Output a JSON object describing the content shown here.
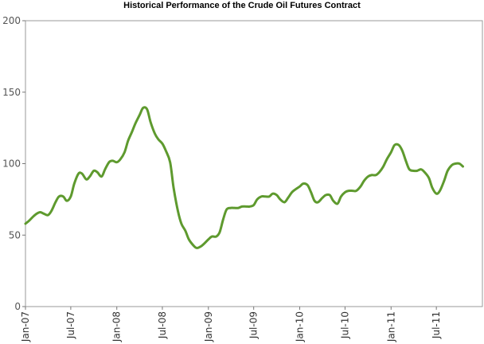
{
  "chart_data": {
    "type": "line",
    "title": "Historical Performance of the Crude Oil Futures Contract",
    "xlabel": "",
    "ylabel": "",
    "ylim": [
      0,
      200
    ],
    "yticks": [
      0,
      50,
      100,
      150,
      200
    ],
    "xlim": [
      "2007-01",
      "2011-12"
    ],
    "xticks": [
      {
        "x": "2007-01",
        "label": "Jan-07"
      },
      {
        "x": "2007-07",
        "label": "Jul-07"
      },
      {
        "x": "2008-01",
        "label": "Jan-08"
      },
      {
        "x": "2008-07",
        "label": "Jul-08"
      },
      {
        "x": "2009-01",
        "label": "Jan-09"
      },
      {
        "x": "2009-07",
        "label": "Jul-09"
      },
      {
        "x": "2010-01",
        "label": "Jan-10"
      },
      {
        "x": "2010-07",
        "label": "Jul-10"
      },
      {
        "x": "2011-01",
        "label": "Jan-11"
      },
      {
        "x": "2011-07",
        "label": "Jul-11"
      }
    ],
    "grid": false,
    "legend": "none",
    "line_color": "#5e9a2e",
    "series": [
      {
        "name": "",
        "points": [
          [
            "2007-01-01",
            58
          ],
          [
            "2007-01-15",
            60
          ],
          [
            "2007-02-01",
            63
          ],
          [
            "2007-02-15",
            65
          ],
          [
            "2007-03-01",
            66
          ],
          [
            "2007-03-15",
            65
          ],
          [
            "2007-04-01",
            64
          ],
          [
            "2007-04-15",
            67
          ],
          [
            "2007-05-01",
            73
          ],
          [
            "2007-05-15",
            77
          ],
          [
            "2007-06-01",
            77
          ],
          [
            "2007-06-15",
            74
          ],
          [
            "2007-07-01",
            77
          ],
          [
            "2007-07-15",
            86
          ],
          [
            "2007-08-01",
            93
          ],
          [
            "2007-08-15",
            93
          ],
          [
            "2007-09-01",
            89
          ],
          [
            "2007-09-15",
            91
          ],
          [
            "2007-10-01",
            95
          ],
          [
            "2007-10-15",
            94
          ],
          [
            "2007-11-01",
            91
          ],
          [
            "2007-11-15",
            96
          ],
          [
            "2007-12-01",
            101
          ],
          [
            "2007-12-15",
            102
          ],
          [
            "2008-01-01",
            101
          ],
          [
            "2008-01-15",
            103
          ],
          [
            "2008-02-01",
            108
          ],
          [
            "2008-02-15",
            116
          ],
          [
            "2008-03-01",
            122
          ],
          [
            "2008-03-15",
            128
          ],
          [
            "2008-04-01",
            134
          ],
          [
            "2008-04-15",
            139
          ],
          [
            "2008-05-01",
            138
          ],
          [
            "2008-05-15",
            129
          ],
          [
            "2008-06-01",
            121
          ],
          [
            "2008-06-15",
            117
          ],
          [
            "2008-07-01",
            114
          ],
          [
            "2008-07-15",
            109
          ],
          [
            "2008-08-01",
            101
          ],
          [
            "2008-08-15",
            83
          ],
          [
            "2008-09-01",
            67
          ],
          [
            "2008-09-15",
            58
          ],
          [
            "2008-10-01",
            53
          ],
          [
            "2008-10-15",
            47
          ],
          [
            "2008-11-01",
            43
          ],
          [
            "2008-11-15",
            41
          ],
          [
            "2008-12-01",
            42
          ],
          [
            "2008-12-15",
            44
          ],
          [
            "2009-01-01",
            47
          ],
          [
            "2009-01-15",
            49
          ],
          [
            "2009-02-01",
            49
          ],
          [
            "2009-02-15",
            52
          ],
          [
            "2009-03-01",
            61
          ],
          [
            "2009-03-15",
            68
          ],
          [
            "2009-04-01",
            69
          ],
          [
            "2009-04-15",
            69
          ],
          [
            "2009-05-01",
            69
          ],
          [
            "2009-05-15",
            70
          ],
          [
            "2009-06-01",
            70
          ],
          [
            "2009-06-15",
            70
          ],
          [
            "2009-07-01",
            71
          ],
          [
            "2009-07-15",
            75
          ],
          [
            "2009-08-01",
            77
          ],
          [
            "2009-08-15",
            77
          ],
          [
            "2009-09-01",
            77
          ],
          [
            "2009-09-15",
            79
          ],
          [
            "2009-10-01",
            78
          ],
          [
            "2009-10-15",
            75
          ],
          [
            "2009-11-01",
            73
          ],
          [
            "2009-11-15",
            76
          ],
          [
            "2009-12-01",
            80
          ],
          [
            "2009-12-15",
            82
          ],
          [
            "2010-01-01",
            84
          ],
          [
            "2010-01-15",
            86
          ],
          [
            "2010-02-01",
            85
          ],
          [
            "2010-02-15",
            80
          ],
          [
            "2010-03-01",
            74
          ],
          [
            "2010-03-15",
            73
          ],
          [
            "2010-04-01",
            76
          ],
          [
            "2010-04-15",
            78
          ],
          [
            "2010-05-01",
            78
          ],
          [
            "2010-05-15",
            74
          ],
          [
            "2010-06-01",
            72
          ],
          [
            "2010-06-15",
            77
          ],
          [
            "2010-07-01",
            80
          ],
          [
            "2010-07-15",
            81
          ],
          [
            "2010-08-01",
            81
          ],
          [
            "2010-08-15",
            81
          ],
          [
            "2010-09-01",
            84
          ],
          [
            "2010-09-15",
            88
          ],
          [
            "2010-10-01",
            91
          ],
          [
            "2010-10-15",
            92
          ],
          [
            "2010-11-01",
            92
          ],
          [
            "2010-11-15",
            94
          ],
          [
            "2010-12-01",
            98
          ],
          [
            "2010-12-15",
            103
          ],
          [
            "2011-01-01",
            108
          ],
          [
            "2011-01-15",
            113
          ],
          [
            "2011-02-01",
            113
          ],
          [
            "2011-02-15",
            109
          ],
          [
            "2011-03-01",
            102
          ],
          [
            "2011-03-15",
            96
          ],
          [
            "2011-04-01",
            95
          ],
          [
            "2011-04-15",
            95
          ],
          [
            "2011-05-01",
            96
          ],
          [
            "2011-05-15",
            94
          ],
          [
            "2011-06-01",
            90
          ],
          [
            "2011-06-15",
            83
          ],
          [
            "2011-07-01",
            79
          ],
          [
            "2011-07-15",
            81
          ],
          [
            "2011-08-01",
            88
          ],
          [
            "2011-08-15",
            95
          ],
          [
            "2011-09-01",
            99
          ],
          [
            "2011-09-15",
            100
          ],
          [
            "2011-10-01",
            100
          ],
          [
            "2011-10-15",
            98
          ]
        ]
      }
    ]
  }
}
